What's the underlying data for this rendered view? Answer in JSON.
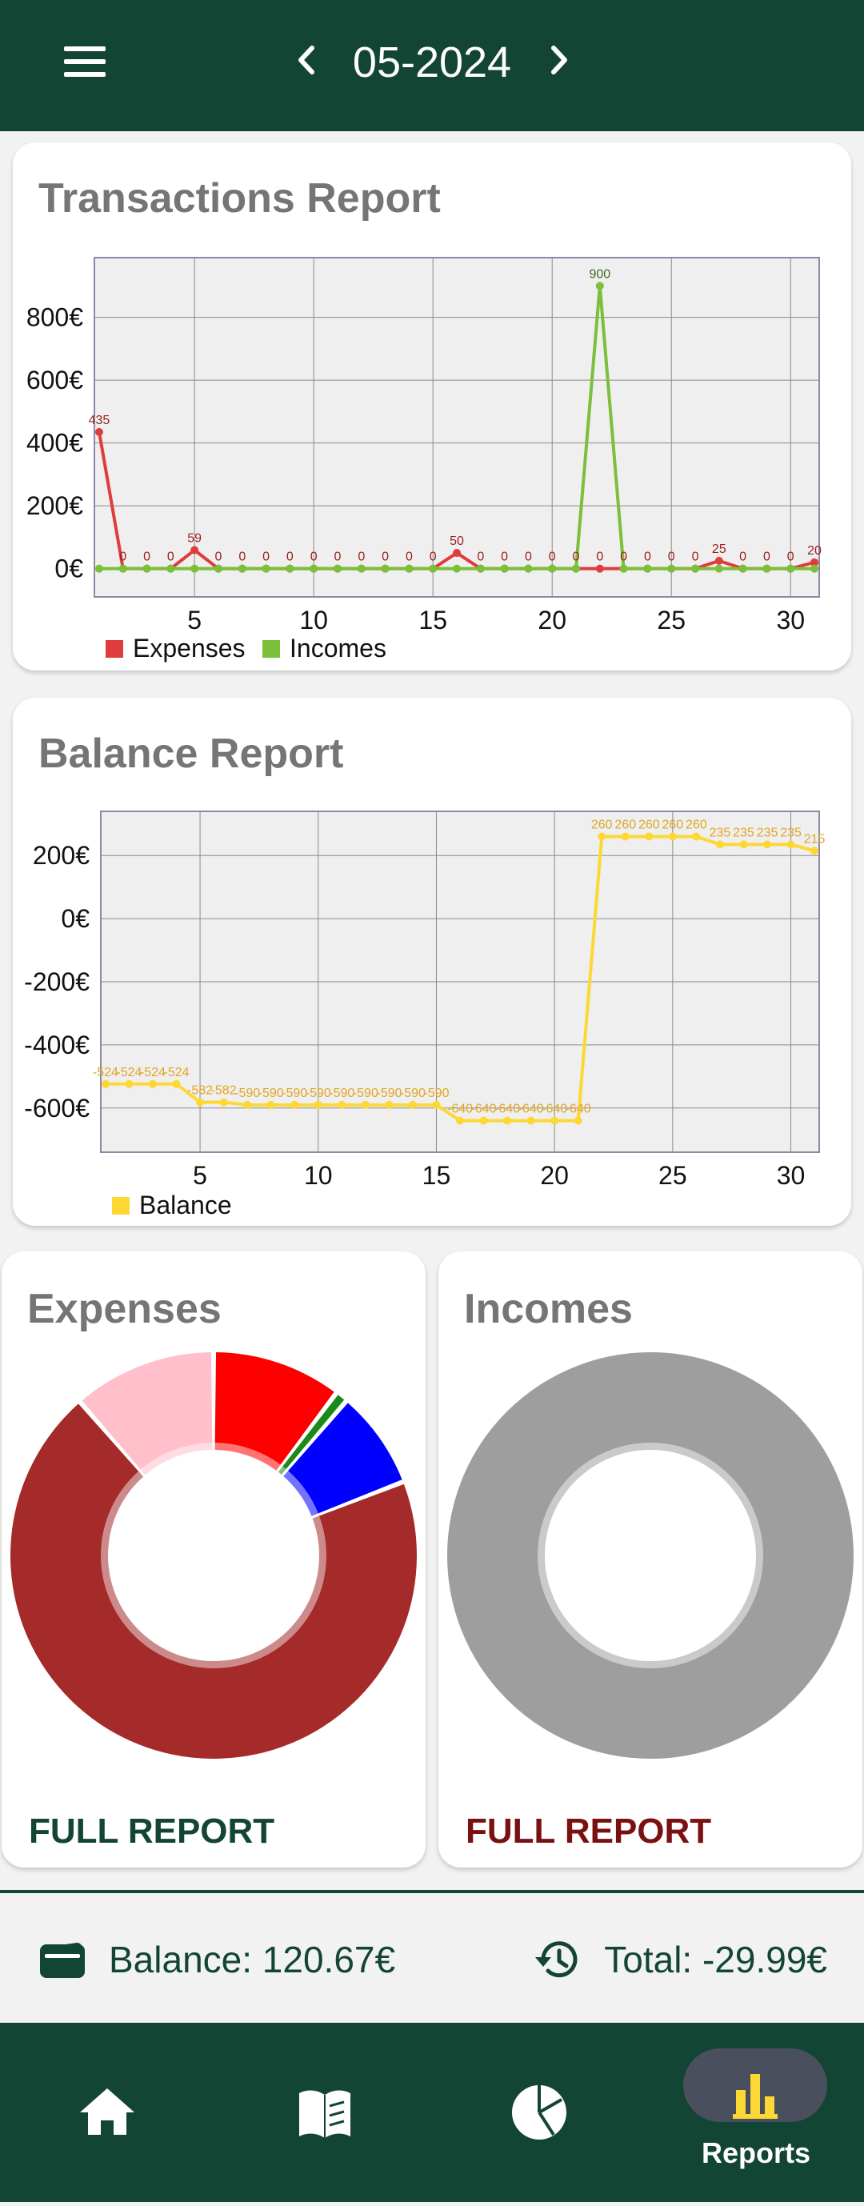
{
  "header": {
    "month": "05-2024",
    "menu_icon": "hamburger-menu-icon",
    "prev_icon": "chevron-left-icon",
    "next_icon": "chevron-right-icon"
  },
  "transactions_report": {
    "title": "Transactions Report",
    "legend": [
      "Expenses",
      "Incomes"
    ],
    "colors": {
      "expenses": "#e03c3c",
      "incomes": "#7cbf3b"
    }
  },
  "balance_report": {
    "title": "Balance Report",
    "legend": [
      "Balance"
    ],
    "colors": {
      "balance": "#fdd835",
      "labels": "#e0a624"
    }
  },
  "expenses_card": {
    "title": "Expenses",
    "link": "FULL REPORT",
    "link_color": "#134534"
  },
  "incomes_card": {
    "title": "Incomes",
    "link": "FULL REPORT",
    "link_color": "#7a1010"
  },
  "footer": {
    "balance": "Balance: 120.67€",
    "total": "Total: -29.99€",
    "wallet_icon": "wallet-icon",
    "history_icon": "history-icon"
  },
  "bottom_nav": {
    "items": [
      {
        "icon": "home-icon"
      },
      {
        "icon": "book-icon"
      },
      {
        "icon": "pie-chart-icon"
      },
      {
        "icon": "bar-chart-icon",
        "label": "Reports",
        "active": true
      }
    ]
  },
  "chart_data": [
    {
      "type": "line",
      "title": "Transactions Report",
      "x": [
        1,
        2,
        3,
        4,
        5,
        6,
        7,
        8,
        9,
        10,
        11,
        12,
        13,
        14,
        15,
        16,
        17,
        18,
        19,
        20,
        21,
        22,
        23,
        24,
        25,
        26,
        27,
        28,
        29,
        30,
        31
      ],
      "xticks": [
        5,
        10,
        15,
        20,
        25,
        30
      ],
      "yticks": [
        "0€",
        "200€",
        "400€",
        "600€",
        "800€"
      ],
      "ylim": [
        -90,
        990
      ],
      "grid": true,
      "legend_position": "bottom-left",
      "series": [
        {
          "name": "Expenses",
          "color": "#e03c3c",
          "values": [
            435,
            0,
            0,
            0,
            59,
            0,
            0,
            0,
            0,
            0,
            0,
            0,
            0,
            0,
            0,
            50,
            0,
            0,
            0,
            0,
            0,
            0,
            0,
            0,
            0,
            0,
            25,
            0,
            0,
            0,
            20
          ]
        },
        {
          "name": "Incomes",
          "color": "#7cbf3b",
          "values": [
            0,
            0,
            0,
            0,
            0,
            0,
            0,
            0,
            0,
            0,
            0,
            0,
            0,
            0,
            0,
            0,
            0,
            0,
            0,
            0,
            0,
            900,
            0,
            0,
            0,
            0,
            0,
            0,
            0,
            0,
            0
          ]
        }
      ]
    },
    {
      "type": "line",
      "title": "Balance Report",
      "x": [
        1,
        2,
        3,
        4,
        5,
        6,
        7,
        8,
        9,
        10,
        11,
        12,
        13,
        14,
        15,
        16,
        17,
        18,
        19,
        20,
        21,
        22,
        23,
        24,
        25,
        26,
        27,
        28,
        29,
        30,
        31
      ],
      "xticks": [
        5,
        10,
        15,
        20,
        25,
        30
      ],
      "yticks": [
        "-600€",
        "-400€",
        "-200€",
        "0€",
        "200€"
      ],
      "ylim": [
        -740,
        340
      ],
      "grid": true,
      "legend_position": "bottom-left",
      "series": [
        {
          "name": "Balance",
          "color": "#fdd835",
          "values": [
            -524,
            -524,
            -524,
            -524,
            -582,
            -582,
            -590,
            -590,
            -590,
            -590,
            -590,
            -590,
            -590,
            -590,
            -590,
            -640,
            -640,
            -640,
            -640,
            -640,
            -640,
            260,
            260,
            260,
            260,
            260,
            235,
            235,
            235,
            235,
            215
          ]
        }
      ]
    },
    {
      "type": "pie",
      "title": "Expenses",
      "slices": [
        {
          "value": 10.3,
          "color": "#ff0000"
        },
        {
          "value": 1.0,
          "color": "#1a8a1a"
        },
        {
          "value": 7.8,
          "color": "#0000ff"
        },
        {
          "value": 69.5,
          "color": "#a52a2a"
        },
        {
          "value": 11.4,
          "color": "#ffc0cb"
        }
      ]
    },
    {
      "type": "pie",
      "title": "Incomes",
      "slices": [
        {
          "value": 100,
          "color": "#9e9e9e"
        }
      ]
    }
  ]
}
